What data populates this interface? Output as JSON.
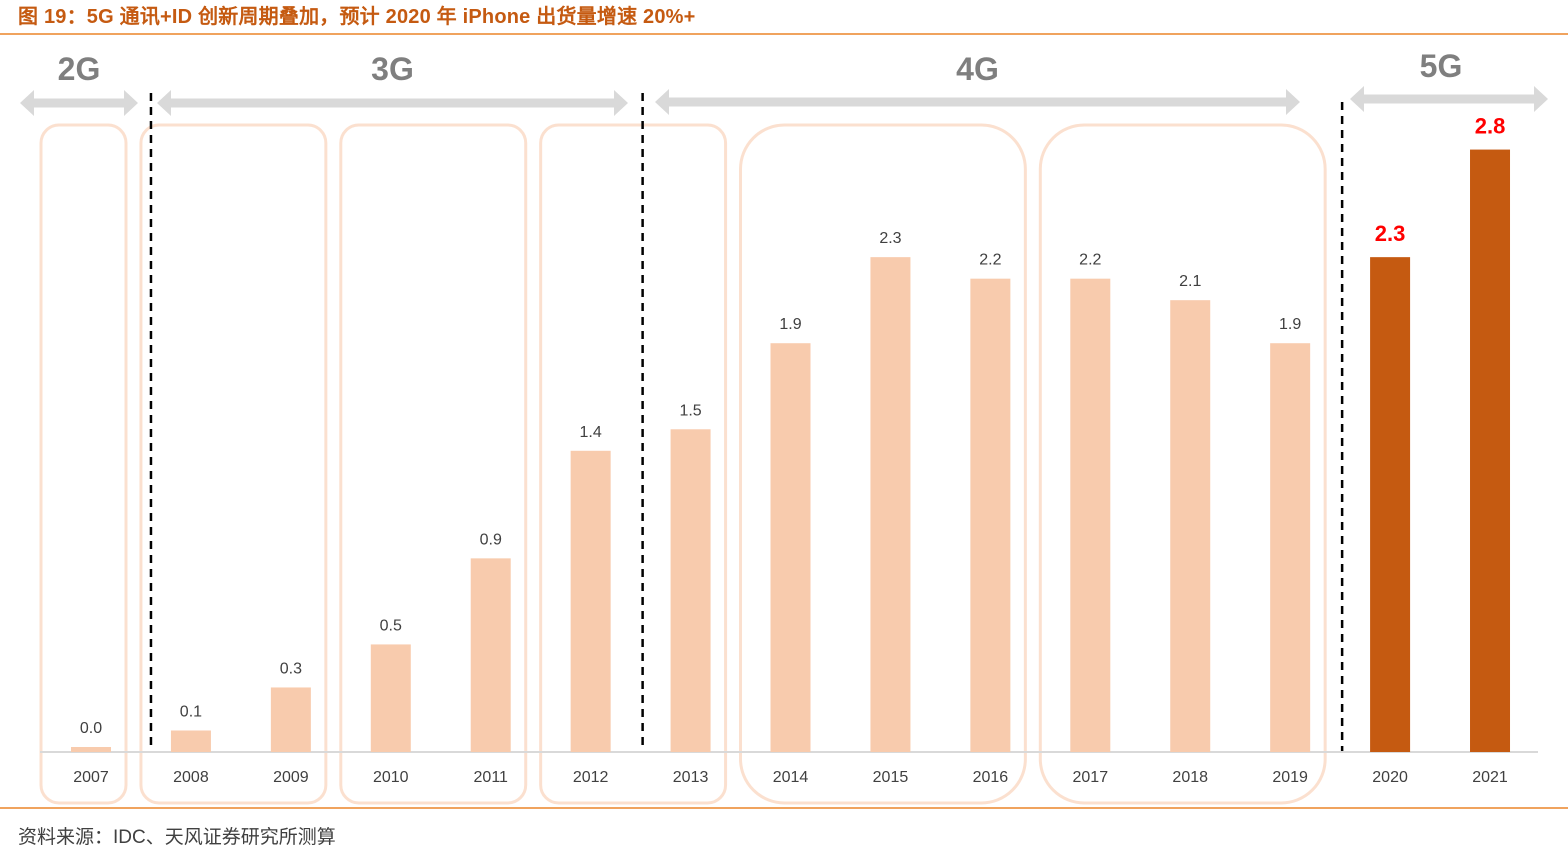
{
  "figure": {
    "title": "图 19：5G 通讯+ID 创新周期叠加，预计 2020 年 iPhone 出货量增速 20%+",
    "source": "资料来源：IDC、天风证券研究所测算"
  },
  "colors": {
    "bar_normal": "#f8cbad",
    "bar_highlight": "#c55a11",
    "highlight_label": "#ff0000",
    "group_box": "#fbe0cf",
    "era_arrow": "#d9d9d9",
    "rule": "#f0a35e"
  },
  "chart_data": {
    "type": "bar",
    "categories": [
      "2007",
      "2008",
      "2009",
      "2010",
      "2011",
      "2012",
      "2013",
      "2014",
      "2015",
      "2016",
      "2017",
      "2018",
      "2019",
      "2020",
      "2021"
    ],
    "values": [
      0.0,
      0.1,
      0.3,
      0.5,
      0.9,
      1.4,
      1.5,
      1.9,
      2.3,
      2.2,
      2.2,
      2.1,
      1.9,
      2.3,
      2.8
    ],
    "data_labels": [
      "0.0",
      "0.1",
      "0.3",
      "0.5",
      "0.9",
      "1.4",
      "1.5",
      "1.9",
      "2.3",
      "2.2",
      "2.2",
      "2.1",
      "1.9",
      "2.3",
      "2.8"
    ],
    "highlighted_categories": [
      "2020",
      "2021"
    ],
    "ylim": [
      0,
      3.3
    ],
    "grid": false,
    "eras": [
      {
        "label": "2G",
        "from": "2007",
        "to": "2007"
      },
      {
        "label": "3G",
        "from": "2008",
        "to": "2012"
      },
      {
        "label": "4G",
        "from": "2013",
        "to": "2019"
      },
      {
        "label": "5G",
        "from": "2020",
        "to": "2021"
      }
    ],
    "era_dividers_after": [
      "2007",
      "2012",
      "2019"
    ],
    "groups": [
      [
        "2007"
      ],
      [
        "2008",
        "2009"
      ],
      [
        "2010",
        "2011"
      ],
      [
        "2012",
        "2013"
      ],
      [
        "2014",
        "2015",
        "2016"
      ],
      [
        "2017",
        "2018",
        "2019"
      ]
    ]
  }
}
